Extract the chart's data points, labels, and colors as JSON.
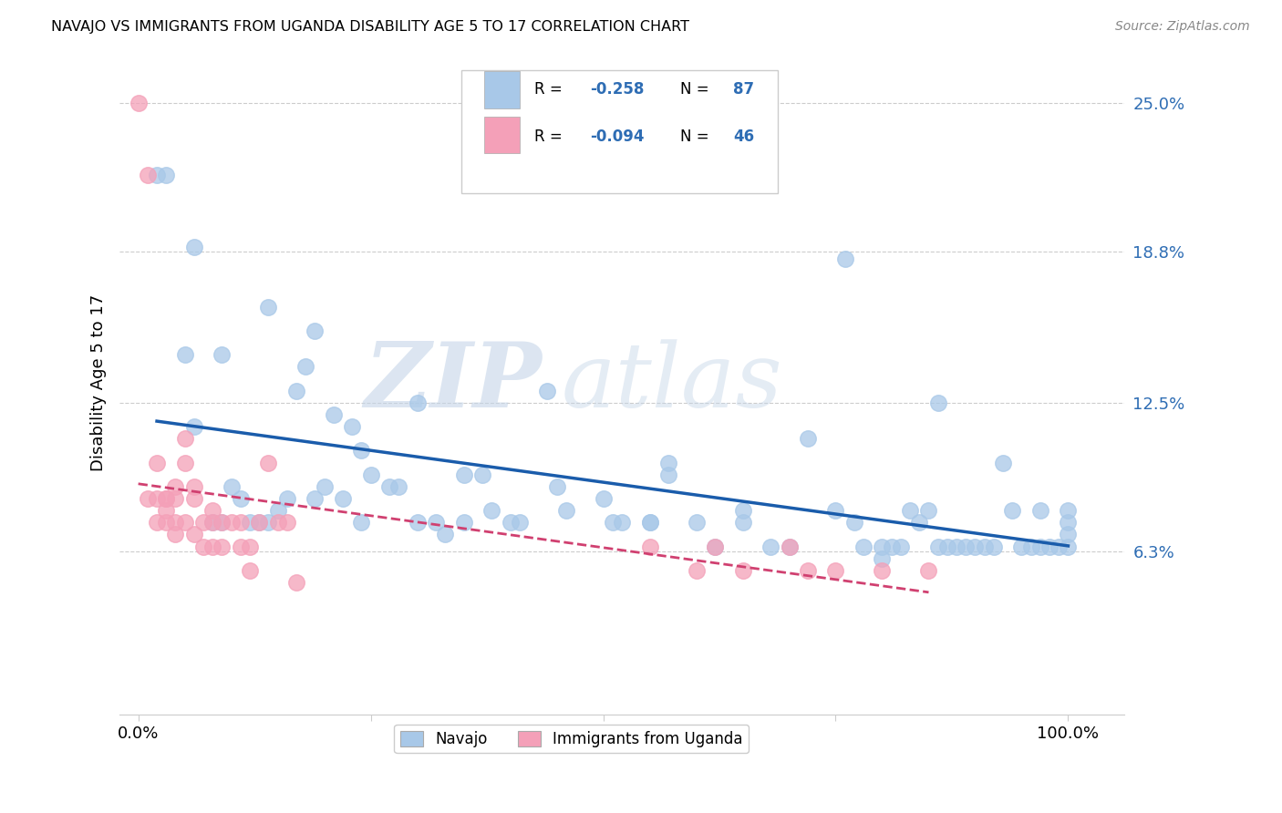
{
  "title": "NAVAJO VS IMMIGRANTS FROM UGANDA DISABILITY AGE 5 TO 17 CORRELATION CHART",
  "source": "Source: ZipAtlas.com",
  "ylabel": "Disability Age 5 to 17",
  "y_tick_labels": [
    "6.3%",
    "12.5%",
    "18.8%",
    "25.0%"
  ],
  "y_tick_positions": [
    0.063,
    0.125,
    0.188,
    0.25
  ],
  "y_lim": [
    -0.005,
    0.272
  ],
  "x_lim": [
    -0.02,
    1.06
  ],
  "navajo_color": "#A8C8E8",
  "uganda_color": "#F4A0B8",
  "trendline_navajo_color": "#1A5CAB",
  "trendline_uganda_color": "#D04070",
  "watermark_zip": "ZIP",
  "watermark_atlas": "atlas",
  "navajo_x": [
    0.02,
    0.05,
    0.06,
    0.08,
    0.09,
    0.1,
    0.11,
    0.12,
    0.13,
    0.14,
    0.15,
    0.16,
    0.17,
    0.18,
    0.19,
    0.2,
    0.21,
    0.22,
    0.23,
    0.24,
    0.25,
    0.27,
    0.28,
    0.3,
    0.32,
    0.33,
    0.35,
    0.37,
    0.38,
    0.4,
    0.41,
    0.44,
    0.45,
    0.46,
    0.5,
    0.51,
    0.52,
    0.55,
    0.57,
    0.6,
    0.62,
    0.65,
    0.68,
    0.7,
    0.72,
    0.75,
    0.77,
    0.78,
    0.8,
    0.81,
    0.82,
    0.83,
    0.84,
    0.85,
    0.86,
    0.87,
    0.88,
    0.89,
    0.9,
    0.91,
    0.92,
    0.93,
    0.94,
    0.95,
    0.96,
    0.97,
    0.98,
    0.99,
    1.0,
    1.0,
    1.0,
    1.0,
    0.03,
    0.06,
    0.09,
    0.14,
    0.19,
    0.24,
    0.3,
    0.35,
    0.57,
    0.76,
    0.86,
    0.55,
    0.65,
    0.8,
    0.97
  ],
  "navajo_y": [
    0.22,
    0.145,
    0.115,
    0.075,
    0.075,
    0.09,
    0.085,
    0.075,
    0.075,
    0.075,
    0.08,
    0.085,
    0.13,
    0.14,
    0.085,
    0.09,
    0.12,
    0.085,
    0.115,
    0.105,
    0.095,
    0.09,
    0.09,
    0.125,
    0.075,
    0.07,
    0.075,
    0.095,
    0.08,
    0.075,
    0.075,
    0.13,
    0.09,
    0.08,
    0.085,
    0.075,
    0.075,
    0.075,
    0.095,
    0.075,
    0.065,
    0.075,
    0.065,
    0.065,
    0.11,
    0.08,
    0.075,
    0.065,
    0.065,
    0.065,
    0.065,
    0.08,
    0.075,
    0.08,
    0.065,
    0.065,
    0.065,
    0.065,
    0.065,
    0.065,
    0.065,
    0.1,
    0.08,
    0.065,
    0.065,
    0.065,
    0.065,
    0.065,
    0.065,
    0.07,
    0.075,
    0.08,
    0.22,
    0.19,
    0.145,
    0.165,
    0.155,
    0.075,
    0.075,
    0.095,
    0.1,
    0.185,
    0.125,
    0.075,
    0.08,
    0.06,
    0.08
  ],
  "uganda_x": [
    0.0,
    0.01,
    0.01,
    0.02,
    0.02,
    0.02,
    0.03,
    0.03,
    0.03,
    0.03,
    0.04,
    0.04,
    0.04,
    0.04,
    0.05,
    0.05,
    0.05,
    0.06,
    0.06,
    0.06,
    0.07,
    0.07,
    0.08,
    0.08,
    0.08,
    0.09,
    0.09,
    0.1,
    0.11,
    0.11,
    0.12,
    0.12,
    0.13,
    0.14,
    0.15,
    0.16,
    0.55,
    0.6,
    0.62,
    0.65,
    0.7,
    0.72,
    0.75,
    0.8,
    0.85,
    0.17
  ],
  "uganda_y": [
    0.25,
    0.22,
    0.085,
    0.1,
    0.085,
    0.075,
    0.085,
    0.085,
    0.08,
    0.075,
    0.09,
    0.085,
    0.075,
    0.07,
    0.11,
    0.1,
    0.075,
    0.09,
    0.085,
    0.07,
    0.075,
    0.065,
    0.08,
    0.075,
    0.065,
    0.075,
    0.065,
    0.075,
    0.075,
    0.065,
    0.065,
    0.055,
    0.075,
    0.1,
    0.075,
    0.075,
    0.065,
    0.055,
    0.065,
    0.055,
    0.065,
    0.055,
    0.055,
    0.055,
    0.055,
    0.05
  ]
}
